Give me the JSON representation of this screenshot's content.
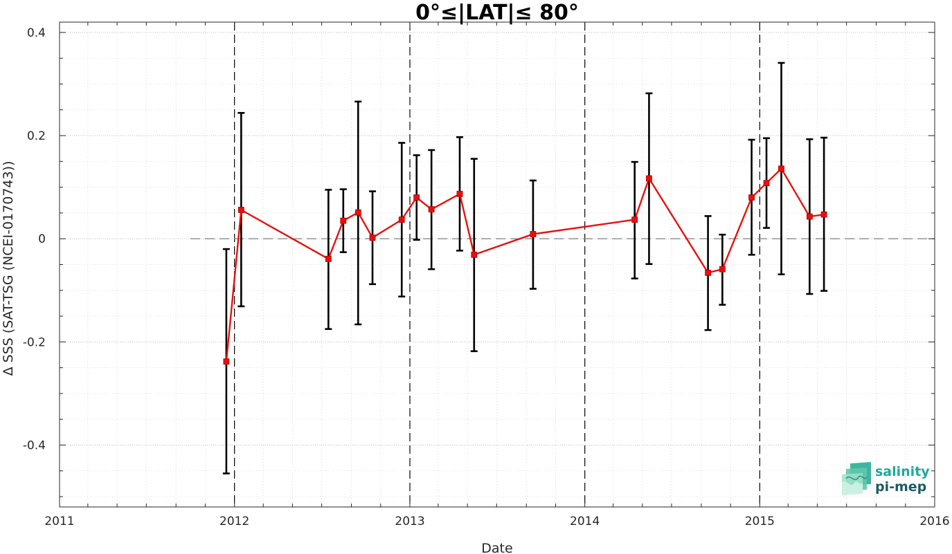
{
  "chart_data": {
    "type": "line",
    "title": "0°≤|LAT|≤ 80°",
    "xlabel": "Date",
    "ylabel": "Δ SSS (SAT-TSG (NCEI-0170743))",
    "xlim": [
      "2011-01-01",
      "2016-01-01"
    ],
    "ylim": [
      -0.52,
      0.42
    ],
    "x_ticks": [
      "2011",
      "2012",
      "2013",
      "2014",
      "2015",
      "2016"
    ],
    "y_ticks": [
      0.4,
      0.2,
      0,
      -0.2,
      -0.4
    ],
    "y_tick_labels": [
      "0.4",
      "0.2",
      "0",
      "-0.2",
      "-0.4"
    ],
    "year_markers": [
      "2012-01-01",
      "2013-01-01",
      "2014-01-01",
      "2015-01-01"
    ],
    "zero_line": 0,
    "grid": "dotted",
    "series": [
      {
        "color": "#e8100c",
        "error_color": "#000000",
        "points": [
          {
            "x": "2011-12-15",
            "y": -0.238,
            "low": -0.455,
            "high": -0.02
          },
          {
            "x": "2012-01-15",
            "y": 0.056,
            "low": -0.131,
            "high": 0.244
          },
          {
            "x": "2012-07-15",
            "y": -0.039,
            "low": -0.175,
            "high": 0.095
          },
          {
            "x": "2012-08-15",
            "y": 0.035,
            "low": -0.026,
            "high": 0.096
          },
          {
            "x": "2012-09-15",
            "y": 0.051,
            "low": -0.166,
            "high": 0.266
          },
          {
            "x": "2012-10-15",
            "y": 0.002,
            "low": -0.088,
            "high": 0.092
          },
          {
            "x": "2012-12-15",
            "y": 0.037,
            "low": -0.112,
            "high": 0.186
          },
          {
            "x": "2013-01-15",
            "y": 0.08,
            "low": -0.002,
            "high": 0.162
          },
          {
            "x": "2013-02-15",
            "y": 0.057,
            "low": -0.059,
            "high": 0.172
          },
          {
            "x": "2013-04-15",
            "y": 0.087,
            "low": -0.023,
            "high": 0.197
          },
          {
            "x": "2013-05-15",
            "y": -0.031,
            "low": -0.218,
            "high": 0.155
          },
          {
            "x": "2013-09-15",
            "y": 0.009,
            "low": -0.097,
            "high": 0.113
          },
          {
            "x": "2014-04-15",
            "y": 0.037,
            "low": -0.077,
            "high": 0.149
          },
          {
            "x": "2014-05-15",
            "y": 0.117,
            "low": -0.049,
            "high": 0.282
          },
          {
            "x": "2014-09-15",
            "y": -0.066,
            "low": -0.177,
            "high": 0.044
          },
          {
            "x": "2014-10-15",
            "y": -0.059,
            "low": -0.128,
            "high": 0.008
          },
          {
            "x": "2014-12-15",
            "y": 0.08,
            "low": -0.031,
            "high": 0.192
          },
          {
            "x": "2015-01-15",
            "y": 0.108,
            "low": 0.021,
            "high": 0.195
          },
          {
            "x": "2015-02-15",
            "y": 0.136,
            "low": -0.069,
            "high": 0.341
          },
          {
            "x": "2015-04-15",
            "y": 0.043,
            "low": -0.107,
            "high": 0.193
          },
          {
            "x": "2015-05-15",
            "y": 0.047,
            "low": -0.101,
            "high": 0.196
          }
        ]
      }
    ]
  },
  "logo": {
    "word1": "salinity",
    "word2": "pi-mep",
    "icon": "salinity-wave-icon"
  }
}
